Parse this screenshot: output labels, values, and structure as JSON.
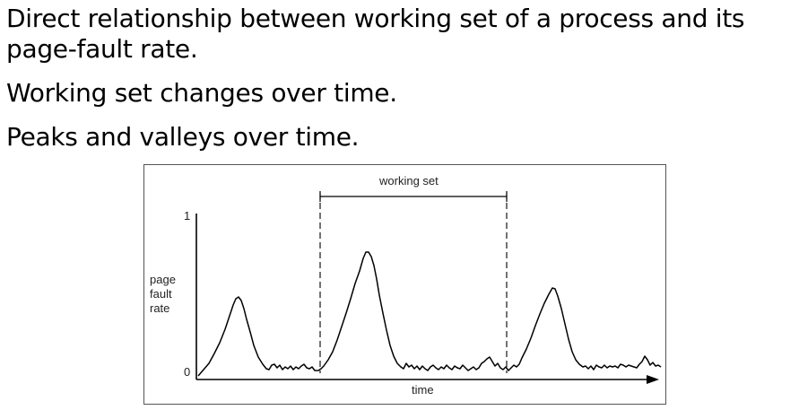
{
  "bullets": [
    "Direct relationship between working set of a process and its page-fault rate.",
    "Working set changes over time.",
    "Peaks and valleys over time."
  ],
  "figure": {
    "bracket_label": "working set",
    "y_axis_label": "page\nfault\nrate",
    "y_tick_top": "1",
    "y_tick_bottom": "0",
    "x_axis_label": "time"
  }
}
